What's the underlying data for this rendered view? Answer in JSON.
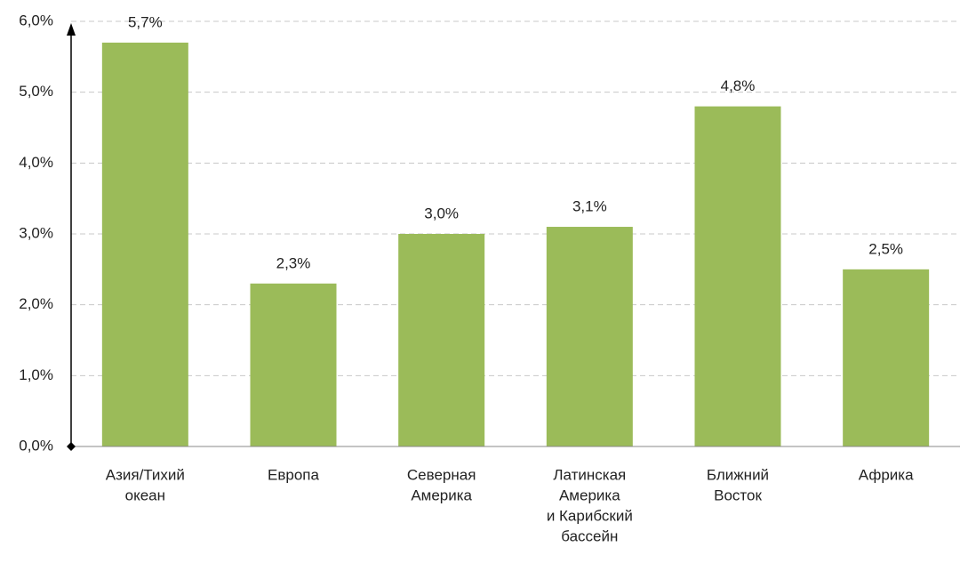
{
  "chart_data": {
    "type": "bar",
    "categories": [
      [
        "Азия/Тихий",
        "океан"
      ],
      [
        "Европа"
      ],
      [
        "Северная",
        "Америка"
      ],
      [
        "Латинская",
        "Америка",
        "и Карибский",
        "бассейн"
      ],
      [
        "Ближний",
        "Восток"
      ],
      [
        "Африка"
      ]
    ],
    "values": [
      5.7,
      2.3,
      3.0,
      3.1,
      4.8,
      2.5
    ],
    "value_labels": [
      "5,7%",
      "2,3%",
      "3,0%",
      "3,1%",
      "4,8%",
      "2,5%"
    ],
    "color": "#9bbb59",
    "ylim": [
      0,
      6
    ],
    "yticks": [
      {
        "value": 0,
        "label": "0,0%"
      },
      {
        "value": 1,
        "label": "1,0%"
      },
      {
        "value": 2,
        "label": "2,0%"
      },
      {
        "value": 3,
        "label": "3,0%"
      },
      {
        "value": 4,
        "label": "4,0%"
      },
      {
        "value": 5,
        "label": "5,0%"
      },
      {
        "value": 6,
        "label": "6,0%"
      }
    ],
    "grid": true
  }
}
